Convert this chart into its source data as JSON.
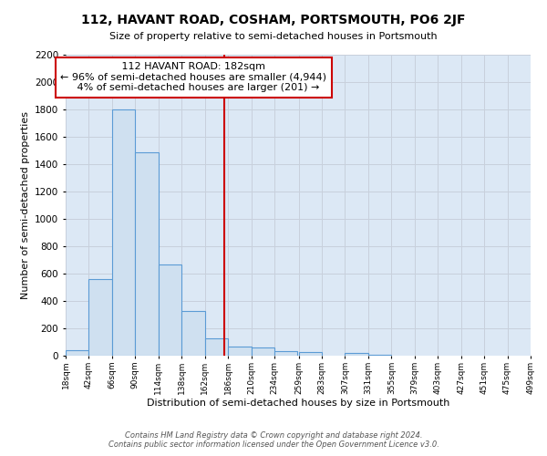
{
  "title": "112, HAVANT ROAD, COSHAM, PORTSMOUTH, PO6 2JF",
  "subtitle": "Size of property relative to semi-detached houses in Portsmouth",
  "xlabel": "Distribution of semi-detached houses by size in Portsmouth",
  "ylabel": "Number of semi-detached properties",
  "bar_color": "#cfe0f0",
  "bar_edge_color": "#5b9bd5",
  "background_color": "#ffffff",
  "grid_color": "#c8d0dc",
  "ax_bg_color": "#dce8f5",
  "annotation_box_color": "#ffffff",
  "annotation_border_color": "#cc0000",
  "vline_color": "#cc0000",
  "property_size": 182,
  "property_label": "112 HAVANT ROAD: 182sqm",
  "pct_smaller": 96,
  "count_smaller": 4944,
  "pct_larger": 4,
  "count_larger": 201,
  "bin_edges": [
    18,
    42,
    66,
    90,
    114,
    138,
    162,
    186,
    210,
    234,
    259,
    283,
    307,
    331,
    355,
    379,
    403,
    427,
    451,
    475,
    499
  ],
  "bin_counts": [
    40,
    560,
    1800,
    1490,
    665,
    325,
    130,
    70,
    60,
    35,
    25,
    0,
    20,
    5,
    0,
    0,
    0,
    0,
    0,
    0
  ],
  "ylim": [
    0,
    2200
  ],
  "yticks": [
    0,
    200,
    400,
    600,
    800,
    1000,
    1200,
    1400,
    1600,
    1800,
    2000,
    2200
  ],
  "footer_line1": "Contains HM Land Registry data © Crown copyright and database right 2024.",
  "footer_line2": "Contains public sector information licensed under the Open Government Licence v3.0."
}
